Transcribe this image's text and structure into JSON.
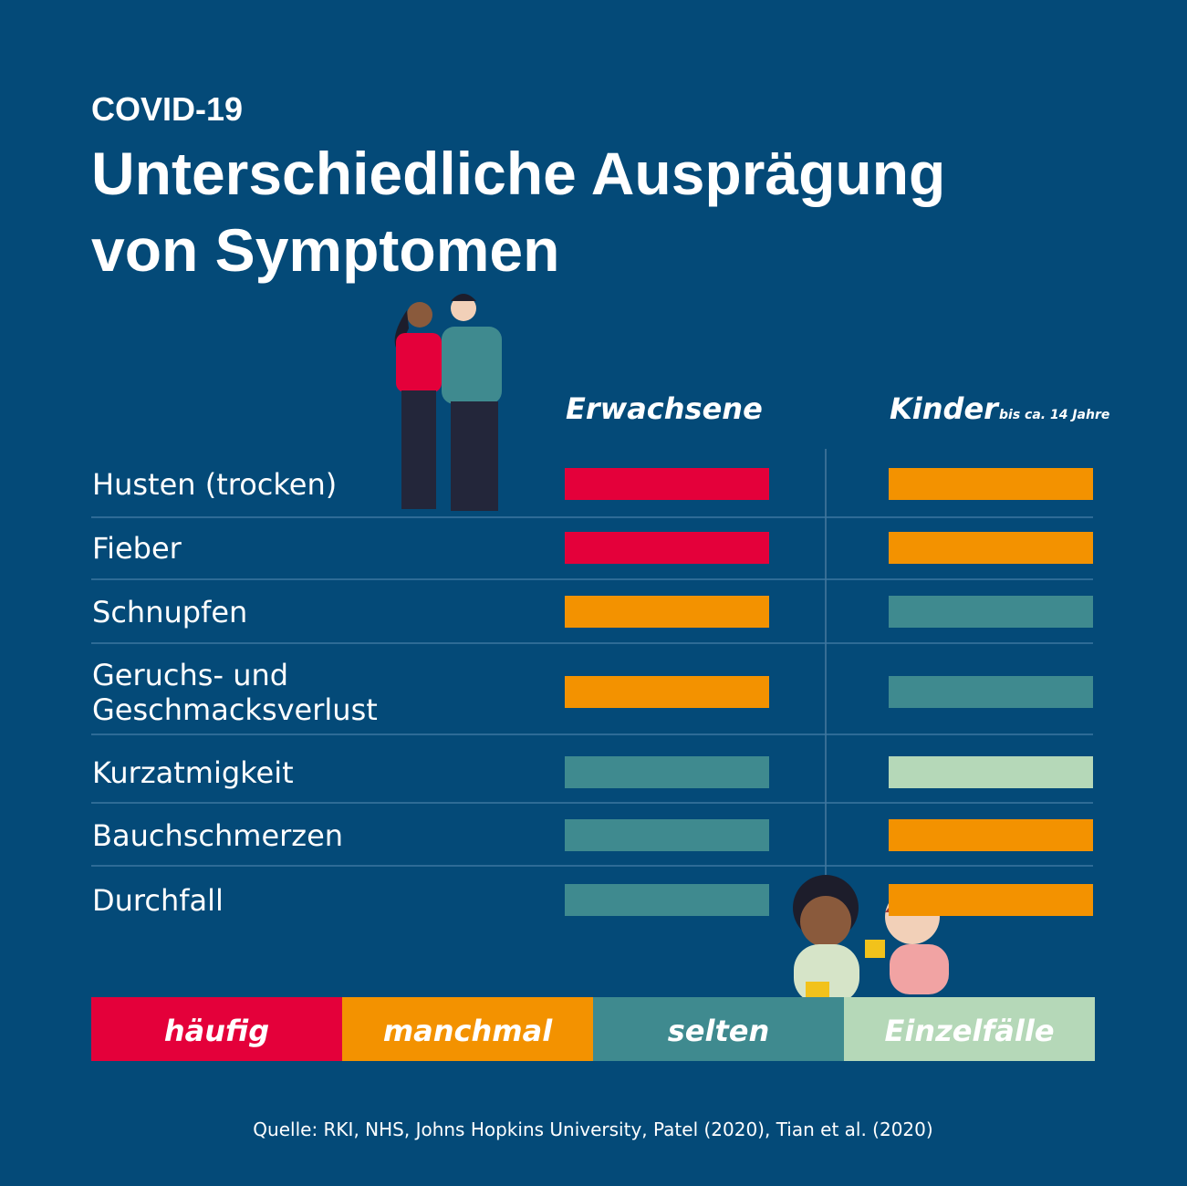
{
  "header": {
    "kicker": "COVID-19",
    "title_lines": [
      "Unterschiedliche Ausprägung",
      "von Symptomen"
    ]
  },
  "columns": {
    "adults": "Erwachsene",
    "children": "Kinder",
    "children_note": "bis ca. 14 Jahre"
  },
  "rows": [
    {
      "symptom_lines": [
        "Husten (trocken)"
      ],
      "adults": 0,
      "children": 1
    },
    {
      "symptom_lines": [
        "Fieber"
      ],
      "adults": 0,
      "children": 1
    },
    {
      "symptom_lines": [
        "Schnupfen"
      ],
      "adults": 1,
      "children": 2
    },
    {
      "symptom_lines": [
        "Geruchs- und",
        "Geschmacksverlust"
      ],
      "adults": 1,
      "children": 2
    },
    {
      "symptom_lines": [
        "Kurzatmigkeit"
      ],
      "adults": 2,
      "children": 3
    },
    {
      "symptom_lines": [
        "Bauchschmerzen"
      ],
      "adults": 2,
      "children": 1
    },
    {
      "symptom_lines": [
        "Durchfall"
      ],
      "adults": 2,
      "children": 1
    }
  ],
  "legend": [
    {
      "label": "häufig",
      "color": "#e4003a"
    },
    {
      "label": "manchmal",
      "color": "#f39200"
    },
    {
      "label": "selten",
      "color": "#3f8a8f"
    },
    {
      "label": "Einzelfälle",
      "color": "#b5d8b8"
    }
  ],
  "source": "Quelle: RKI, NHS, Johns Hopkins University, Patel (2020), Tian et al. (2020)"
}
